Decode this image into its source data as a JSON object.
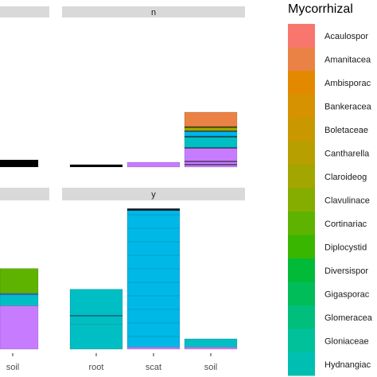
{
  "chart_data": {
    "type": "bar",
    "stacked": true,
    "panels": [
      {
        "strip": "",
        "categories": [
          "soil"
        ]
      },
      {
        "strip": "n",
        "categories": [
          "root",
          "scat",
          "soil"
        ]
      },
      {
        "strip": "",
        "categories": [
          "soil"
        ]
      },
      {
        "strip": "y",
        "categories": [
          "root",
          "scat",
          "soil"
        ]
      }
    ],
    "x_tick_labels": [
      "soil",
      "root",
      "scat",
      "soil"
    ],
    "legend": {
      "title": "Mycorrhizal",
      "position": "right",
      "entries": [
        {
          "label": "Acaulospor",
          "color": "#F8766D"
        },
        {
          "label": "Amanitacea",
          "color": "#EB8245"
        },
        {
          "label": "Ambisporac",
          "color": "#E38900"
        },
        {
          "label": "Bankeracea",
          "color": "#D69200"
        },
        {
          "label": "Boletaceae",
          "color": "#C99800"
        },
        {
          "label": "Cantharella",
          "color": "#B79F00"
        },
        {
          "label": "Claroideog",
          "color": "#A3A500"
        },
        {
          "label": "Clavulinace",
          "color": "#85AD00"
        },
        {
          "label": "Cortinariac",
          "color": "#5EB300"
        },
        {
          "label": "Diplocystid",
          "color": "#39B600"
        },
        {
          "label": "Diversispor",
          "color": "#00BA38"
        },
        {
          "label": "Gigasporac",
          "color": "#00BC59"
        },
        {
          "label": "Glomeracea",
          "color": "#00BF7D"
        },
        {
          "label": "Gloniaceae",
          "color": "#00C19A"
        },
        {
          "label": "Hydnangiac",
          "color": "#00BFB2"
        }
      ]
    },
    "series_values": {
      "n_root": [
        {
          "color": "#000000",
          "value": 0.01
        }
      ],
      "n_scat": [
        {
          "color": "#C77CFF",
          "value": 0.02
        }
      ],
      "n_soil": [
        {
          "color": "#C77CFF",
          "value": 0.08
        },
        {
          "color": "#00BFC4",
          "value": 0.05
        },
        {
          "color": "#00B3F0",
          "value": 0.02
        },
        {
          "color": "#A3A500",
          "value": 0.02
        },
        {
          "color": "#EB8245",
          "value": 0.06
        }
      ],
      "left_top_soil": [
        {
          "color": "#000000",
          "value": 0.03
        }
      ],
      "y_root": [
        {
          "color": "#00BFC4",
          "value": 0.12
        },
        {
          "color": "#00BFC4",
          "value": 0.17
        }
      ],
      "y_scat": [
        {
          "color": "#C77CFF",
          "value": 0.01
        },
        {
          "color": "#00B8E7",
          "value": 0.66
        },
        {
          "color": "#0E1A2B",
          "value": 0.01
        }
      ],
      "y_soil": [
        {
          "color": "#C77CFF",
          "value": 0.01
        },
        {
          "color": "#00BFC4",
          "value": 0.04
        }
      ],
      "left_bottom_soil": [
        {
          "color": "#C77CFF",
          "value": 0.21
        },
        {
          "color": "#00BFC4",
          "value": 0.06
        },
        {
          "color": "#5EB300",
          "value": 0.12
        }
      ]
    }
  }
}
